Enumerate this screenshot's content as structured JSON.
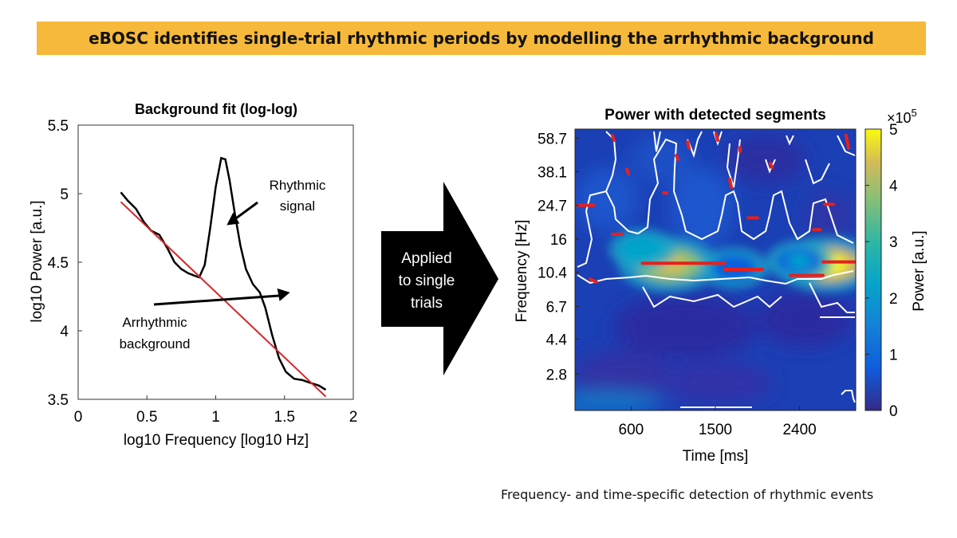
{
  "banner": {
    "title": "eBOSC identifies single-trial rhythmic periods by modelling the arrhythmic background"
  },
  "arrow": {
    "label_lines": [
      "Applied",
      "to single",
      "trials"
    ]
  },
  "caption": "Frequency- and time-specific detection of rhythmic events",
  "chart_data": [
    {
      "type": "line",
      "title": "Background fit (log-log)",
      "xlabel": "log10 Frequency [log10 Hz]",
      "ylabel": "log10 Power [a.u.]",
      "xlim": [
        0,
        2
      ],
      "ylim": [
        3.5,
        5.5
      ],
      "xticks": [
        "0",
        "0.5",
        "1",
        "1.5",
        "2"
      ],
      "yticks": [
        "3.5",
        "4",
        "4.5",
        "5",
        "5.5"
      ],
      "series": [
        {
          "name": "power spectrum",
          "color": "#000000",
          "points": [
            [
              0.31,
              5.01
            ],
            [
              0.36,
              4.95
            ],
            [
              0.42,
              4.89
            ],
            [
              0.48,
              4.79
            ],
            [
              0.53,
              4.73
            ],
            [
              0.59,
              4.7
            ],
            [
              0.65,
              4.6
            ],
            [
              0.7,
              4.5
            ],
            [
              0.75,
              4.45
            ],
            [
              0.8,
              4.42
            ],
            [
              0.85,
              4.4
            ],
            [
              0.88,
              4.39
            ],
            [
              0.92,
              4.48
            ],
            [
              0.96,
              4.75
            ],
            [
              1.0,
              5.05
            ],
            [
              1.04,
              5.26
            ],
            [
              1.07,
              5.25
            ],
            [
              1.1,
              5.1
            ],
            [
              1.14,
              4.85
            ],
            [
              1.18,
              4.62
            ],
            [
              1.22,
              4.45
            ],
            [
              1.27,
              4.34
            ],
            [
              1.32,
              4.28
            ],
            [
              1.36,
              4.17
            ],
            [
              1.41,
              3.97
            ],
            [
              1.46,
              3.8
            ],
            [
              1.51,
              3.7
            ],
            [
              1.57,
              3.65
            ],
            [
              1.63,
              3.64
            ],
            [
              1.69,
              3.62
            ],
            [
              1.75,
              3.6
            ],
            [
              1.8,
              3.57
            ]
          ]
        },
        {
          "name": "background fit",
          "color": "#d62728",
          "points": [
            [
              0.31,
              4.94
            ],
            [
              1.8,
              3.52
            ]
          ]
        }
      ],
      "annotations": [
        {
          "text_lines": [
            "Rhythmic",
            "signal"
          ],
          "points_to": [
            1.08,
            4.77
          ]
        },
        {
          "text_lines": [
            "Arrhythmic",
            "background"
          ],
          "points_to": [
            0.96,
            4.28
          ]
        }
      ]
    },
    {
      "type": "heatmap",
      "title": "Power with detected segments",
      "xlabel": "Time [ms]",
      "ylabel": "Frequency [Hz]",
      "xlim": [
        0,
        3000
      ],
      "xticks": [
        "600",
        "1500",
        "2400"
      ],
      "yticks": [
        "58.7",
        "38.1",
        "24.7",
        "16",
        "10.4",
        "6.7",
        "4.4",
        "2.8"
      ],
      "colorbar": {
        "label": "Power [a.u.]",
        "min": 0,
        "max": 5,
        "ticks": [
          "0",
          "1",
          "2",
          "3",
          "4",
          "5"
        ],
        "exponent": "×10^5",
        "exponent_base": "×10",
        "exponent_power": "5"
      },
      "hotspots": [
        {
          "t": 1000,
          "f": 11.5,
          "power": 4.8
        },
        {
          "t": 2700,
          "f": 11.5,
          "power": 5.0
        },
        {
          "t": 720,
          "f": 14,
          "power": 2.8
        },
        {
          "t": 2400,
          "f": 12,
          "power": 2.3
        },
        {
          "t": 1700,
          "f": 11,
          "power": 1.8
        }
      ],
      "detected_segments": [
        {
          "t_start": 720,
          "t_end": 1600,
          "f": 11.7
        },
        {
          "t_start": 1600,
          "t_end": 2000,
          "f": 10.8
        },
        {
          "t_start": 2300,
          "t_end": 2650,
          "f": 10.0
        },
        {
          "t_start": 2650,
          "t_end": 3000,
          "f": 11.9
        },
        {
          "t_start": 30,
          "t_end": 200,
          "f": 24.7
        },
        {
          "t_start": 400,
          "t_end": 500,
          "f": 17.0
        },
        {
          "t_start": 1850,
          "t_end": 1950,
          "f": 21.0
        },
        {
          "t_start": 2550,
          "t_end": 2620,
          "f": 18.0
        },
        {
          "t_start": 2670,
          "t_end": 2760,
          "f": 25.0
        }
      ]
    }
  ]
}
